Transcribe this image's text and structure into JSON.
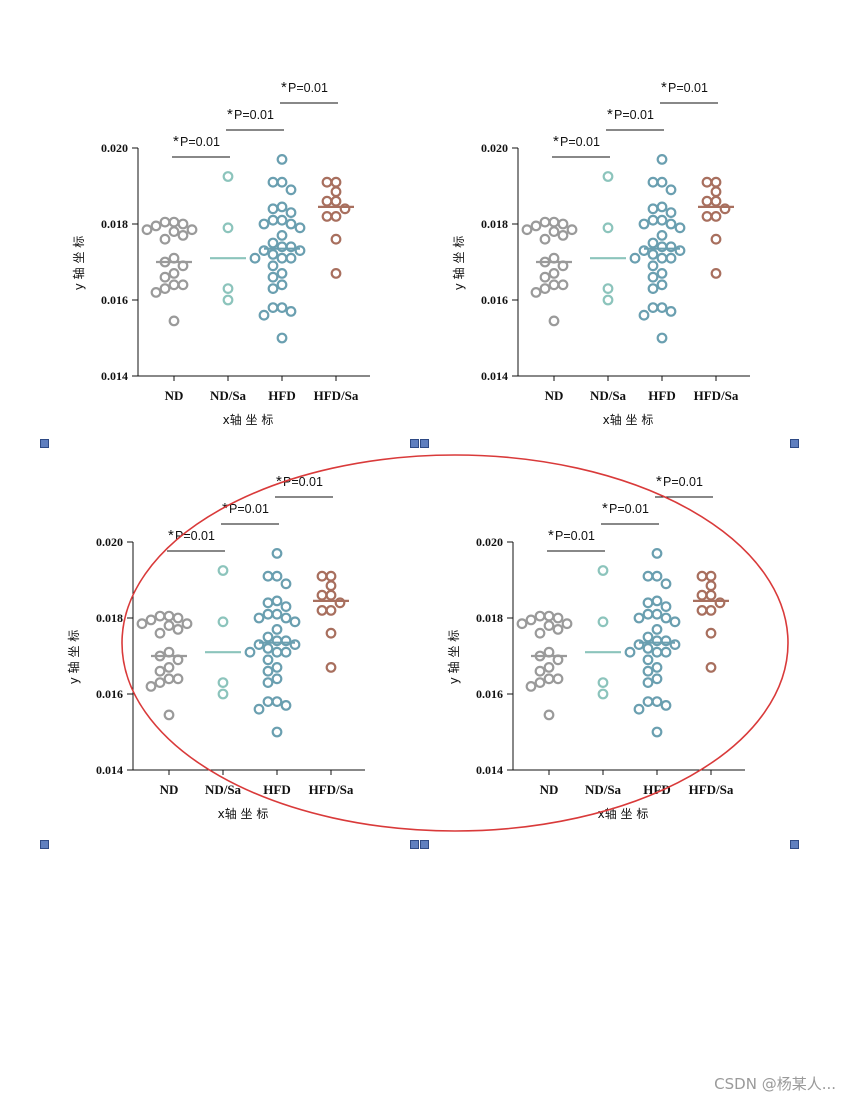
{
  "watermark": "CSDN @杨某人...",
  "chart_data": [
    {
      "type": "scatter",
      "subtype": "dot-plot-with-mean-line",
      "position": "top-left",
      "xlabel": "x轴 坐 标",
      "ylabel": "y 轴 坐 标",
      "ylim": [
        0.014,
        0.02
      ],
      "yticks": [
        "0.014",
        "0.016",
        "0.018",
        "0.020"
      ],
      "categories": [
        "ND",
        "ND/Sa",
        "HFD",
        "HFD/Sa"
      ],
      "series": [
        {
          "name": "ND",
          "color": "#9a9a9a",
          "mean": 0.017,
          "values": [
            0.01805,
            0.01805,
            0.018,
            0.01795,
            0.01785,
            0.01785,
            0.0178,
            0.0176,
            0.0177,
            0.0171,
            0.017,
            0.0169,
            0.0167,
            0.0166,
            0.0164,
            0.0164,
            0.0163,
            0.0162,
            0.01545
          ]
        },
        {
          "name": "ND/Sa",
          "color": "#8cc4bc",
          "mean": 0.0171,
          "values": [
            0.01925,
            0.0179,
            0.0163,
            0.016
          ]
        },
        {
          "name": "HFD",
          "color": "#6a9fb0",
          "mean": 0.01735,
          "values": [
            0.0197,
            0.0191,
            0.0191,
            0.0189,
            0.01845,
            0.0184,
            0.0183,
            0.0181,
            0.0181,
            0.018,
            0.018,
            0.0179,
            0.0177,
            0.0175,
            0.0174,
            0.0174,
            0.0173,
            0.0173,
            0.0172,
            0.0171,
            0.0171,
            0.0171,
            0.0169,
            0.0167,
            0.0166,
            0.0164,
            0.0163,
            0.0158,
            0.0158,
            0.0157,
            0.0156,
            0.015
          ]
        },
        {
          "name": "HFD/Sa",
          "color": "#a86f5e",
          "mean": 0.01845,
          "values": [
            0.0191,
            0.0191,
            0.01885,
            0.0186,
            0.0186,
            0.0184,
            0.0182,
            0.0182,
            0.0176,
            0.0167
          ]
        }
      ],
      "annotations": [
        {
          "from": "ND",
          "to": "ND/Sa",
          "star": "*",
          "text": "P=0.01"
        },
        {
          "from": "ND/Sa",
          "to": "HFD",
          "star": "*",
          "text": "P=0.01"
        },
        {
          "from": "HFD",
          "to": "HFD/Sa",
          "star": "*",
          "text": "P=0.01"
        }
      ]
    },
    {
      "type": "scatter",
      "subtype": "dot-plot-with-mean-line",
      "position": "top-right",
      "xlabel": "x轴 坐 标",
      "ylabel": "y 轴 坐 标",
      "ylim": [
        0.014,
        0.02
      ],
      "yticks": [
        "0.014",
        "0.016",
        "0.018",
        "0.020"
      ],
      "categories": [
        "ND",
        "ND/Sa",
        "HFD",
        "HFD/Sa"
      ],
      "series": [
        {
          "name": "ND",
          "color": "#9a9a9a",
          "mean": 0.017,
          "values": [
            0.01805,
            0.01805,
            0.018,
            0.01795,
            0.01785,
            0.01785,
            0.0178,
            0.0176,
            0.0177,
            0.0171,
            0.017,
            0.0169,
            0.0167,
            0.0166,
            0.0164,
            0.0164,
            0.0163,
            0.0162,
            0.01545
          ]
        },
        {
          "name": "ND/Sa",
          "color": "#8cc4bc",
          "mean": 0.0171,
          "values": [
            0.01925,
            0.0179,
            0.0163,
            0.016
          ]
        },
        {
          "name": "HFD",
          "color": "#6a9fb0",
          "mean": 0.01735,
          "values": [
            0.0197,
            0.0191,
            0.0191,
            0.0189,
            0.01845,
            0.0184,
            0.0183,
            0.0181,
            0.0181,
            0.018,
            0.018,
            0.0179,
            0.0177,
            0.0175,
            0.0174,
            0.0174,
            0.0173,
            0.0173,
            0.0172,
            0.0171,
            0.0171,
            0.0171,
            0.0169,
            0.0167,
            0.0166,
            0.0164,
            0.0163,
            0.0158,
            0.0158,
            0.0157,
            0.0156,
            0.015
          ]
        },
        {
          "name": "HFD/Sa",
          "color": "#a86f5e",
          "mean": 0.01845,
          "values": [
            0.0191,
            0.0191,
            0.01885,
            0.0186,
            0.0186,
            0.0184,
            0.0182,
            0.0182,
            0.0176,
            0.0167
          ]
        }
      ],
      "annotations": [
        {
          "from": "ND",
          "to": "ND/Sa",
          "star": "*",
          "text": "P=0.01"
        },
        {
          "from": "ND/Sa",
          "to": "HFD",
          "star": "*",
          "text": "P=0.01"
        },
        {
          "from": "HFD",
          "to": "HFD/Sa",
          "star": "*",
          "text": "P=0.01"
        }
      ]
    },
    {
      "type": "scatter",
      "subtype": "dot-plot-with-mean-line",
      "position": "bottom-left",
      "xlabel": "x轴 坐 标",
      "ylabel": "y 轴 坐 标",
      "ylim": [
        0.014,
        0.02
      ],
      "yticks": [
        "0.014",
        "0.016",
        "0.018",
        "0.020"
      ],
      "categories": [
        "ND",
        "ND/Sa",
        "HFD",
        "HFD/Sa"
      ],
      "series": [
        {
          "name": "ND",
          "color": "#9a9a9a",
          "mean": 0.017,
          "values": [
            0.01805,
            0.01805,
            0.018,
            0.01795,
            0.01785,
            0.01785,
            0.0178,
            0.0176,
            0.0177,
            0.0171,
            0.017,
            0.0169,
            0.0167,
            0.0166,
            0.0164,
            0.0164,
            0.0163,
            0.0162,
            0.01545
          ]
        },
        {
          "name": "ND/Sa",
          "color": "#8cc4bc",
          "mean": 0.0171,
          "values": [
            0.01925,
            0.0179,
            0.0163,
            0.016
          ]
        },
        {
          "name": "HFD",
          "color": "#6a9fb0",
          "mean": 0.01735,
          "values": [
            0.0197,
            0.0191,
            0.0191,
            0.0189,
            0.01845,
            0.0184,
            0.0183,
            0.0181,
            0.0181,
            0.018,
            0.018,
            0.0179,
            0.0177,
            0.0175,
            0.0174,
            0.0174,
            0.0173,
            0.0173,
            0.0172,
            0.0171,
            0.0171,
            0.0171,
            0.0169,
            0.0167,
            0.0166,
            0.0164,
            0.0163,
            0.0158,
            0.0158,
            0.0157,
            0.0156,
            0.015
          ]
        },
        {
          "name": "HFD/Sa",
          "color": "#a86f5e",
          "mean": 0.01845,
          "values": [
            0.0191,
            0.0191,
            0.01885,
            0.0186,
            0.0186,
            0.0184,
            0.0182,
            0.0182,
            0.0176,
            0.0167
          ]
        }
      ],
      "annotations": [
        {
          "from": "ND",
          "to": "ND/Sa",
          "star": "*",
          "text": "P=0.01"
        },
        {
          "from": "ND/Sa",
          "to": "HFD",
          "star": "*",
          "text": "P=0.01"
        },
        {
          "from": "HFD",
          "to": "HFD/Sa",
          "star": "*",
          "text": "P=0.01"
        }
      ]
    },
    {
      "type": "scatter",
      "subtype": "dot-plot-with-mean-line",
      "position": "bottom-right",
      "xlabel": "x轴 坐 标",
      "ylabel": "y 轴 坐 标",
      "ylim": [
        0.014,
        0.02
      ],
      "yticks": [
        "0.014",
        "0.016",
        "0.018",
        "0.020"
      ],
      "categories": [
        "ND",
        "ND/Sa",
        "HFD",
        "HFD/Sa"
      ],
      "series": [
        {
          "name": "ND",
          "color": "#9a9a9a",
          "mean": 0.017,
          "values": [
            0.01805,
            0.01805,
            0.018,
            0.01795,
            0.01785,
            0.01785,
            0.0178,
            0.0176,
            0.0177,
            0.0171,
            0.017,
            0.0169,
            0.0167,
            0.0166,
            0.0164,
            0.0164,
            0.0163,
            0.0162,
            0.01545
          ]
        },
        {
          "name": "ND/Sa",
          "color": "#8cc4bc",
          "mean": 0.0171,
          "values": [
            0.01925,
            0.0179,
            0.0163,
            0.016
          ]
        },
        {
          "name": "HFD",
          "color": "#6a9fb0",
          "mean": 0.01735,
          "values": [
            0.0197,
            0.0191,
            0.0191,
            0.0189,
            0.01845,
            0.0184,
            0.0183,
            0.0181,
            0.0181,
            0.018,
            0.018,
            0.0179,
            0.0177,
            0.0175,
            0.0174,
            0.0174,
            0.0173,
            0.0173,
            0.0172,
            0.0171,
            0.0171,
            0.0171,
            0.0169,
            0.0167,
            0.0166,
            0.0164,
            0.0163,
            0.0158,
            0.0158,
            0.0157,
            0.0156,
            0.015
          ]
        },
        {
          "name": "HFD/Sa",
          "color": "#a86f5e",
          "mean": 0.01845,
          "values": [
            0.0191,
            0.0191,
            0.01885,
            0.0186,
            0.0186,
            0.0184,
            0.0182,
            0.0182,
            0.0176,
            0.0167
          ]
        }
      ],
      "annotations": [
        {
          "from": "ND",
          "to": "ND/Sa",
          "star": "*",
          "text": "P=0.01"
        },
        {
          "from": "ND/Sa",
          "to": "HFD",
          "star": "*",
          "text": "P=0.01"
        },
        {
          "from": "HFD",
          "to": "HFD/Sa",
          "star": "*",
          "text": "P=0.01"
        }
      ]
    }
  ],
  "highlight_ellipse": {
    "color": "#d93a3a",
    "encloses": "bottom charts"
  }
}
